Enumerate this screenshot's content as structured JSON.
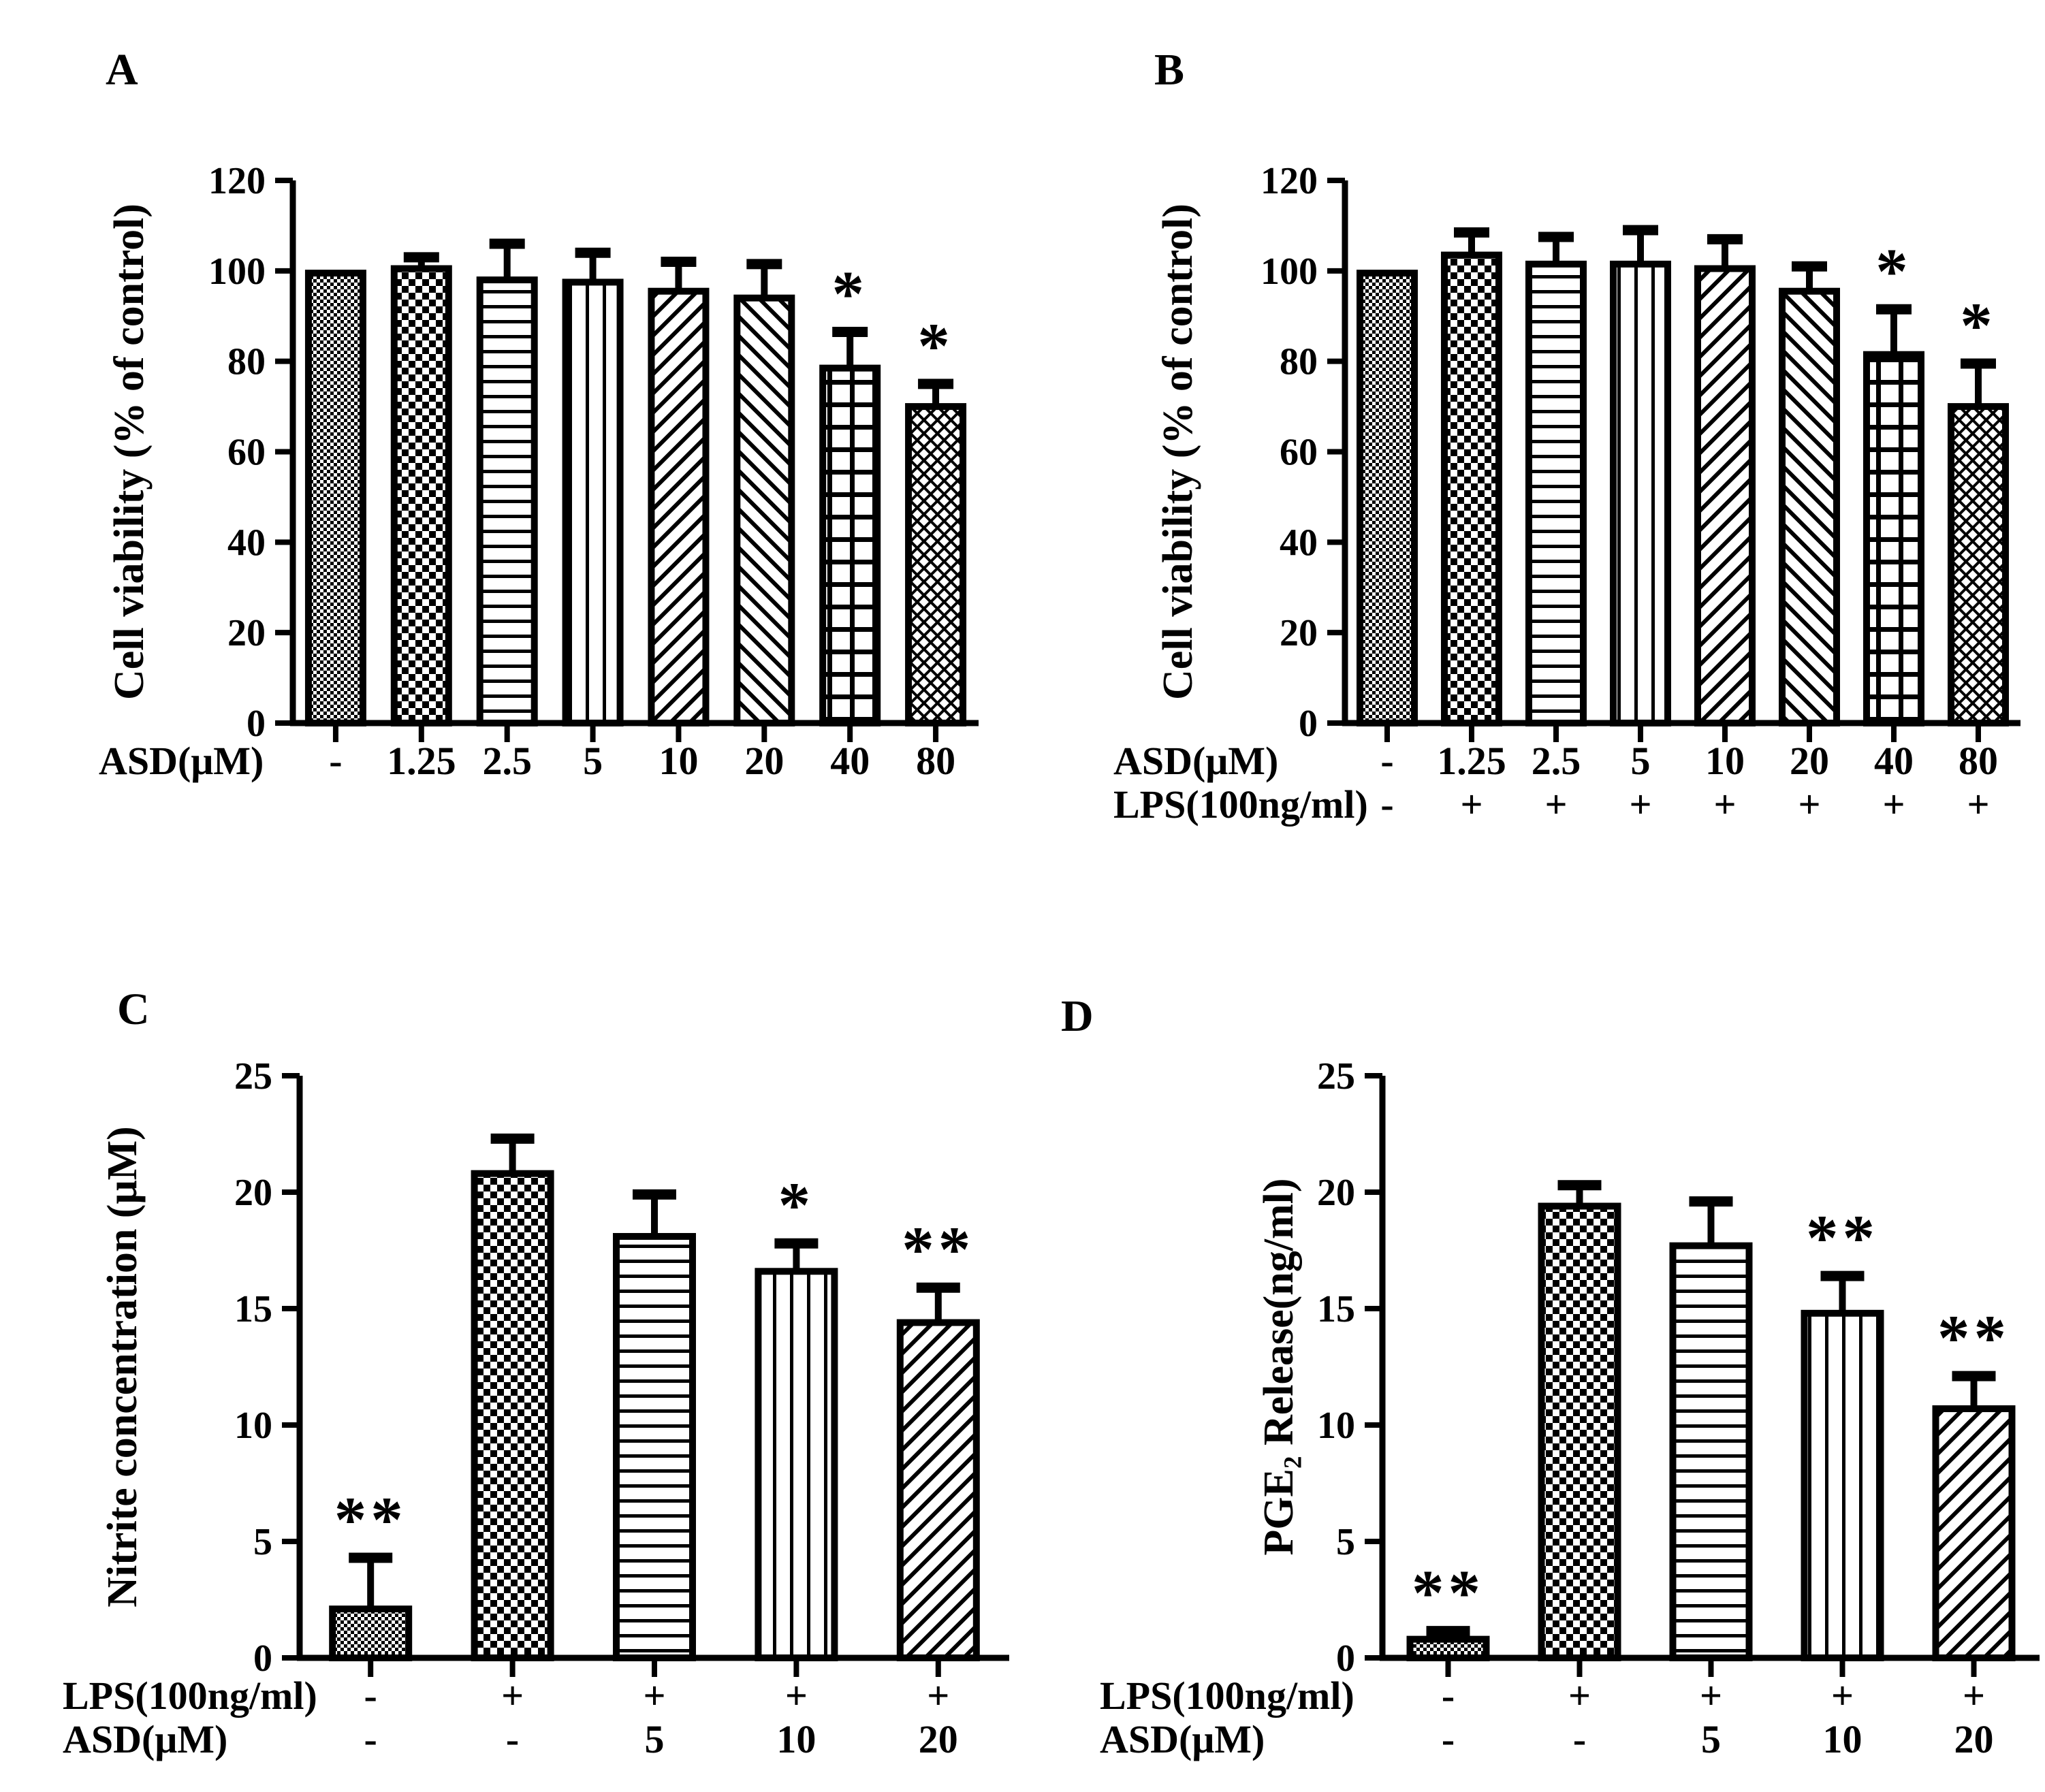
{
  "figure": {
    "background": "#ffffff",
    "ink_color": "#000000",
    "description_note": ""
  },
  "chart_data": [
    {
      "id": "A",
      "panel_label": "A",
      "type": "bar",
      "title": "",
      "ylabel": "Cell viability (% of control)",
      "ylim": [
        0,
        120
      ],
      "ytick_step": 20,
      "ytick_labels": [
        "0",
        "20",
        "40",
        "60",
        "80",
        "100",
        "120"
      ],
      "grid": false,
      "categories": [
        "-",
        "1.25",
        "2.5",
        "5",
        "10",
        "20",
        "40",
        "80"
      ],
      "values": [
        99.5,
        100.5,
        98,
        97.5,
        95.5,
        94,
        78.5,
        70
      ],
      "errors": [
        null,
        2.5,
        8,
        6.5,
        6.5,
        7.5,
        8,
        5
      ],
      "significance": [
        "",
        "",
        "",
        "",
        "",
        "",
        "*",
        "*"
      ],
      "patterns": [
        "fine-checker",
        "coarse-checker",
        "horizontal-lines",
        "vertical-lines",
        "diagonal-up",
        "diagonal-down",
        "grid-lines",
        "diagonal-crosshatch"
      ],
      "x_rows": [
        {
          "header": "ASD(μM)",
          "values": [
            "-",
            "1.25",
            "2.5",
            "5",
            "10",
            "20",
            "40",
            "80"
          ]
        }
      ]
    },
    {
      "id": "B",
      "panel_label": "B",
      "type": "bar",
      "title": "",
      "ylabel": "Cell viability (% of control)",
      "ylim": [
        0,
        120
      ],
      "ytick_step": 20,
      "ytick_labels": [
        "0",
        "20",
        "40",
        "60",
        "80",
        "100",
        "120"
      ],
      "grid": false,
      "categories": [
        "-",
        "1.25",
        "2.5",
        "5",
        "10",
        "20",
        "40",
        "80"
      ],
      "values": [
        99.5,
        103.5,
        101.5,
        101.5,
        100.5,
        95.5,
        81.5,
        70
      ],
      "errors": [
        null,
        5,
        6,
        7.5,
        6.5,
        5.5,
        10,
        9.5
      ],
      "significance": [
        "",
        "",
        "",
        "",
        "",
        "",
        "*",
        "*"
      ],
      "patterns": [
        "fine-checker",
        "coarse-checker",
        "horizontal-lines",
        "vertical-lines",
        "diagonal-up",
        "diagonal-down",
        "grid-lines",
        "diagonal-crosshatch"
      ],
      "x_rows": [
        {
          "header": "ASD(μM)",
          "values": [
            "-",
            "1.25",
            "2.5",
            "5",
            "10",
            "20",
            "40",
            "80"
          ]
        },
        {
          "header": "LPS(100ng/ml)",
          "values": [
            "-",
            "+",
            "+",
            "+",
            "+",
            "+",
            "+",
            "+"
          ]
        }
      ]
    },
    {
      "id": "C",
      "panel_label": "C",
      "type": "bar",
      "title": "",
      "ylabel": "Nitrite concentration (μM)",
      "ylim": [
        0,
        25
      ],
      "ytick_step": 5,
      "ytick_labels": [
        "0",
        "5",
        "10",
        "15",
        "20",
        "25"
      ],
      "grid": false,
      "categories": [
        "-",
        "+",
        "+",
        "+",
        "+"
      ],
      "values": [
        2.1,
        20.8,
        18.1,
        16.6,
        14.4
      ],
      "errors": [
        2.2,
        1.5,
        1.8,
        1.2,
        1.5
      ],
      "significance": [
        "**",
        "",
        "",
        "*",
        "**"
      ],
      "patterns": [
        "fine-checker",
        "coarse-checker",
        "horizontal-lines",
        "vertical-lines",
        "diagonal-up"
      ],
      "x_rows": [
        {
          "header": "LPS(100ng/ml)",
          "values": [
            "-",
            "+",
            "+",
            "+",
            "+"
          ]
        },
        {
          "header": "ASD(μM)",
          "values": [
            "-",
            "-",
            "5",
            "10",
            "20"
          ]
        }
      ]
    },
    {
      "id": "D",
      "panel_label": "D",
      "type": "bar",
      "title": "",
      "ylabel": "PGE₂ Release(ng/ml)",
      "ylim": [
        0,
        25
      ],
      "ytick_step": 5,
      "ytick_labels": [
        "0",
        "5",
        "10",
        "15",
        "20",
        "25"
      ],
      "grid": false,
      "categories": [
        "-",
        "+",
        "+",
        "+",
        "+"
      ],
      "values": [
        0.8,
        19.4,
        17.7,
        14.8,
        10.7
      ],
      "errors": [
        0.35,
        0.9,
        1.9,
        1.6,
        1.4
      ],
      "significance": [
        "**",
        "",
        "",
        "**",
        "**"
      ],
      "patterns": [
        "fine-checker",
        "coarse-checker",
        "horizontal-lines",
        "vertical-lines",
        "diagonal-up"
      ],
      "x_rows": [
        {
          "header": "LPS(100ng/ml)",
          "values": [
            "-",
            "+",
            "+",
            "+",
            "+"
          ]
        },
        {
          "header": "ASD(μM)",
          "values": [
            "-",
            "-",
            "5",
            "10",
            "20"
          ]
        }
      ]
    }
  ]
}
